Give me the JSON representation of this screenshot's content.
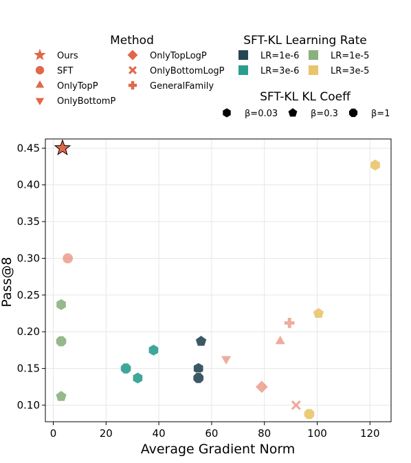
{
  "chart_data": {
    "type": "scatter",
    "xlabel": "Average Gradient Norm",
    "ylabel": "Pass@8",
    "xlim": [
      -3,
      128
    ],
    "ylim": [
      0.0775,
      0.4625
    ],
    "xticks": [
      0,
      20,
      40,
      60,
      80,
      100,
      120
    ],
    "yticks": [
      0.1,
      0.15,
      0.2,
      0.25,
      0.3,
      0.35,
      0.4,
      0.45
    ],
    "xtick_labels": [
      "0",
      "20",
      "40",
      "60",
      "80",
      "100",
      "120"
    ],
    "ytick_labels": [
      "0.10",
      "0.15",
      "0.20",
      "0.25",
      "0.30",
      "0.35",
      "0.40",
      "0.45"
    ],
    "grid": true,
    "colors": {
      "method": "#E0684A",
      "lr_1e6": "#264653",
      "lr_3e6": "#2A9D8F",
      "lr_1e5": "#8AB17D",
      "lr_3e5": "#E9C46A"
    },
    "legends": {
      "method": {
        "title": "Method",
        "items": [
          {
            "label": "Ours",
            "marker": "star"
          },
          {
            "label": "SFT",
            "marker": "circle"
          },
          {
            "label": "OnlyTopP",
            "marker": "triangle-up"
          },
          {
            "label": "OnlyBottomP",
            "marker": "triangle-down"
          },
          {
            "label": "OnlyTopLogP",
            "marker": "diamond"
          },
          {
            "label": "OnlyBottomLogP",
            "marker": "x"
          },
          {
            "label": "GeneralFamily",
            "marker": "plus"
          }
        ]
      },
      "lr": {
        "title": "SFT-KL Learning Rate",
        "items": [
          {
            "label": "LR=1e-6",
            "color": "#264653"
          },
          {
            "label": "LR=1e-5",
            "color": "#8AB17D"
          },
          {
            "label": "LR=3e-6",
            "color": "#2A9D8F"
          },
          {
            "label": "LR=3e-5",
            "color": "#E9C46A"
          }
        ]
      },
      "kl": {
        "title": "SFT-KL KL Coeff",
        "items": [
          {
            "label": "β=0.03",
            "marker": "hexagon"
          },
          {
            "label": "β=0.3",
            "marker": "pentagon"
          },
          {
            "label": "β=1",
            "marker": "octagon"
          }
        ]
      }
    },
    "points": [
      {
        "group": "Ours",
        "marker": "star",
        "color": "#E0684A",
        "x": 3.5,
        "y": 0.45
      },
      {
        "group": "SFT",
        "marker": "circle",
        "color": "#E0684A",
        "x": 5.5,
        "y": 0.3
      },
      {
        "group": "OnlyTopP",
        "marker": "triangle-up",
        "color": "#E0684A",
        "x": 86,
        "y": 0.187
      },
      {
        "group": "OnlyBottomP",
        "marker": "triangle-down",
        "color": "#E0684A",
        "x": 65.5,
        "y": 0.163
      },
      {
        "group": "OnlyTopLogP",
        "marker": "diamond",
        "color": "#E0684A",
        "x": 79,
        "y": 0.125
      },
      {
        "group": "OnlyBottomLogP",
        "marker": "x",
        "color": "#E0684A",
        "x": 92,
        "y": 0.1
      },
      {
        "group": "GeneralFamily",
        "marker": "plus",
        "color": "#E0684A",
        "x": 89.5,
        "y": 0.212
      },
      {
        "group": "LR=1e-6",
        "marker": "pentagon",
        "color": "#264653",
        "x": 56,
        "y": 0.187
      },
      {
        "group": "LR=1e-6",
        "marker": "hexagon",
        "color": "#264653",
        "x": 55,
        "y": 0.15
      },
      {
        "group": "LR=1e-6",
        "marker": "octagon",
        "color": "#264653",
        "x": 55,
        "y": 0.137
      },
      {
        "group": "LR=3e-6",
        "marker": "hexagon",
        "color": "#2A9D8F",
        "x": 38,
        "y": 0.175
      },
      {
        "group": "LR=3e-6",
        "marker": "octagon",
        "color": "#2A9D8F",
        "x": 27.5,
        "y": 0.15
      },
      {
        "group": "LR=3e-6",
        "marker": "hexagon",
        "color": "#2A9D8F",
        "x": 32,
        "y": 0.137
      },
      {
        "group": "LR=1e-5",
        "marker": "hexagon",
        "color": "#8AB17D",
        "x": 3,
        "y": 0.237
      },
      {
        "group": "LR=1e-5",
        "marker": "octagon",
        "color": "#8AB17D",
        "x": 3,
        "y": 0.187
      },
      {
        "group": "LR=1e-5",
        "marker": "pentagon",
        "color": "#8AB17D",
        "x": 3,
        "y": 0.112
      },
      {
        "group": "LR=3e-5",
        "marker": "hexagon",
        "color": "#E9C46A",
        "x": 122,
        "y": 0.427
      },
      {
        "group": "LR=3e-5",
        "marker": "pentagon",
        "color": "#E9C46A",
        "x": 100.5,
        "y": 0.225
      },
      {
        "group": "LR=3e-5",
        "marker": "octagon",
        "color": "#E9C46A",
        "x": 97,
        "y": 0.088
      }
    ]
  }
}
